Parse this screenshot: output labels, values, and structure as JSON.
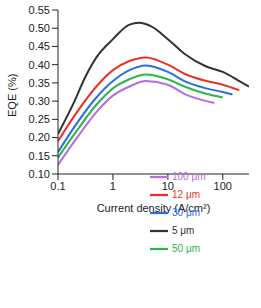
{
  "chart_data": {
    "type": "line",
    "x_label": "Current density (A/cm²)",
    "y_label": "EQE (%)",
    "log": "x",
    "xlim": [
      0.1,
      300
    ],
    "xticks": [
      0.1,
      1,
      10,
      100
    ],
    "ylim": [
      0.1,
      0.55
    ],
    "yticks": [
      {
        "value": 0.1,
        "label": "0.10"
      },
      0.15,
      {
        "value": 0.2,
        "label": "0.20"
      },
      0.25,
      {
        "value": 0.3,
        "label": "0.30"
      },
      0.35,
      {
        "value": 0.4,
        "label": "0.40"
      },
      0.45,
      {
        "value": 0.5,
        "label": "0.50"
      },
      0.55
    ],
    "legend": "lower right",
    "series": [
      {
        "name": "5 μm",
        "color": "#333333",
        "x": [
          0.1,
          0.2,
          0.3,
          0.5,
          1,
          2,
          3,
          5,
          10,
          20,
          50,
          100,
          200,
          300
        ],
        "values": [
          0.21,
          0.3,
          0.36,
          0.42,
          0.47,
          0.51,
          0.515,
          0.505,
          0.47,
          0.43,
          0.395,
          0.38,
          0.355,
          0.34
        ]
      },
      {
        "name": "12 μm",
        "color": "#e8322b",
        "x": [
          0.1,
          0.2,
          0.5,
          1,
          2,
          4,
          10,
          20,
          50,
          100,
          200
        ],
        "values": [
          0.19,
          0.26,
          0.34,
          0.385,
          0.41,
          0.42,
          0.4,
          0.375,
          0.355,
          0.345,
          0.33
        ]
      },
      {
        "name": "30 μm",
        "color": "#2a6ee0",
        "x": [
          0.1,
          0.2,
          0.5,
          1,
          2,
          4,
          10,
          20,
          50,
          100,
          150
        ],
        "values": [
          0.16,
          0.23,
          0.31,
          0.355,
          0.385,
          0.398,
          0.38,
          0.355,
          0.335,
          0.325,
          0.318
        ]
      },
      {
        "name": "50 μm",
        "color": "#2db54a",
        "x": [
          0.1,
          0.2,
          0.5,
          1,
          2,
          4,
          10,
          20,
          50,
          100
        ],
        "values": [
          0.145,
          0.21,
          0.29,
          0.335,
          0.36,
          0.373,
          0.36,
          0.34,
          0.32,
          0.31
        ]
      },
      {
        "name": "100 μm",
        "color": "#b36ee0",
        "x": [
          0.1,
          0.2,
          0.5,
          1,
          2,
          4,
          10,
          20,
          50,
          70
        ],
        "values": [
          0.125,
          0.19,
          0.27,
          0.315,
          0.34,
          0.355,
          0.345,
          0.32,
          0.3,
          0.295
        ]
      }
    ]
  }
}
